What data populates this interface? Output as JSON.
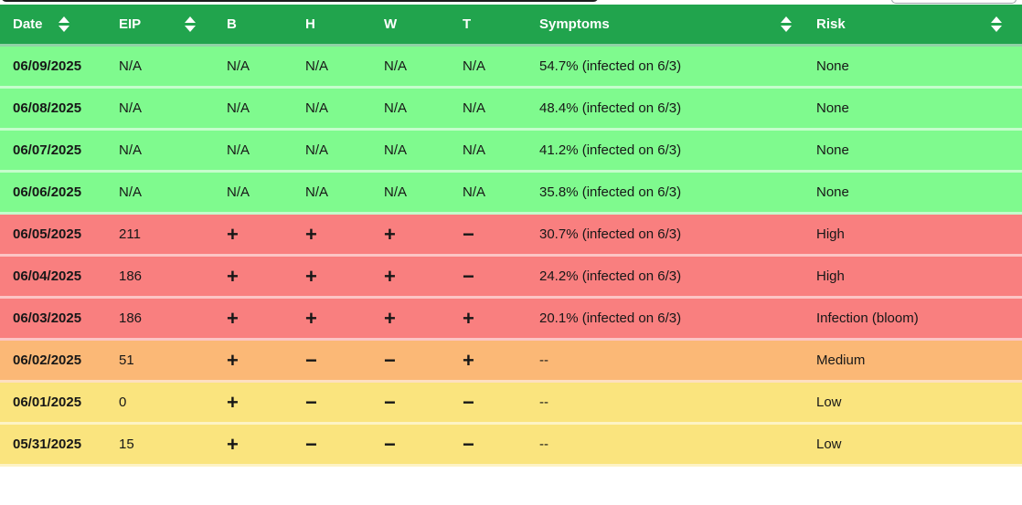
{
  "table": {
    "columns": [
      {
        "key": "date",
        "label": "Date",
        "sortable": true
      },
      {
        "key": "eip",
        "label": "EIP",
        "sortable": true
      },
      {
        "key": "b",
        "label": "B",
        "sortable": false
      },
      {
        "key": "h",
        "label": "H",
        "sortable": false
      },
      {
        "key": "w",
        "label": "W",
        "sortable": false
      },
      {
        "key": "t",
        "label": "T",
        "sortable": false
      },
      {
        "key": "symptoms",
        "label": "Symptoms",
        "sortable": true
      },
      {
        "key": "risk",
        "label": "Risk",
        "sortable": true
      }
    ],
    "rows": [
      {
        "date": "06/09/2025",
        "eip": "N/A",
        "b": "N/A",
        "h": "N/A",
        "w": "N/A",
        "t": "N/A",
        "symptoms": "54.7% (infected on 6/3)",
        "risk": "None",
        "level": "none"
      },
      {
        "date": "06/08/2025",
        "eip": "N/A",
        "b": "N/A",
        "h": "N/A",
        "w": "N/A",
        "t": "N/A",
        "symptoms": "48.4% (infected on 6/3)",
        "risk": "None",
        "level": "none"
      },
      {
        "date": "06/07/2025",
        "eip": "N/A",
        "b": "N/A",
        "h": "N/A",
        "w": "N/A",
        "t": "N/A",
        "symptoms": "41.2% (infected on 6/3)",
        "risk": "None",
        "level": "none"
      },
      {
        "date": "06/06/2025",
        "eip": "N/A",
        "b": "N/A",
        "h": "N/A",
        "w": "N/A",
        "t": "N/A",
        "symptoms": "35.8% (infected on 6/3)",
        "risk": "None",
        "level": "none"
      },
      {
        "date": "06/05/2025",
        "eip": "211",
        "b": "+",
        "h": "+",
        "w": "+",
        "t": "−",
        "symptoms": "30.7% (infected on 6/3)",
        "risk": "High",
        "level": "high"
      },
      {
        "date": "06/04/2025",
        "eip": "186",
        "b": "+",
        "h": "+",
        "w": "+",
        "t": "−",
        "symptoms": "24.2% (infected on 6/3)",
        "risk": "High",
        "level": "high"
      },
      {
        "date": "06/03/2025",
        "eip": "186",
        "b": "+",
        "h": "+",
        "w": "+",
        "t": "+",
        "symptoms": "20.1% (infected on 6/3)",
        "risk": "Infection (bloom)",
        "level": "high"
      },
      {
        "date": "06/02/2025",
        "eip": "51",
        "b": "+",
        "h": "−",
        "w": "−",
        "t": "+",
        "symptoms": "--",
        "risk": "Medium",
        "level": "medium"
      },
      {
        "date": "06/01/2025",
        "eip": "0",
        "b": "+",
        "h": "−",
        "w": "−",
        "t": "−",
        "symptoms": "--",
        "risk": "Low",
        "level": "low"
      },
      {
        "date": "05/31/2025",
        "eip": "15",
        "b": "+",
        "h": "−",
        "w": "−",
        "t": "−",
        "symptoms": "--",
        "risk": "Low",
        "level": "low"
      }
    ],
    "colors": {
      "header_green": "#21a44d",
      "row_none_green": "#7ffa8e",
      "row_high_red": "#f97f7f",
      "row_medium_orange": "#fbb876",
      "row_low_yellow": "#fae47e"
    }
  }
}
